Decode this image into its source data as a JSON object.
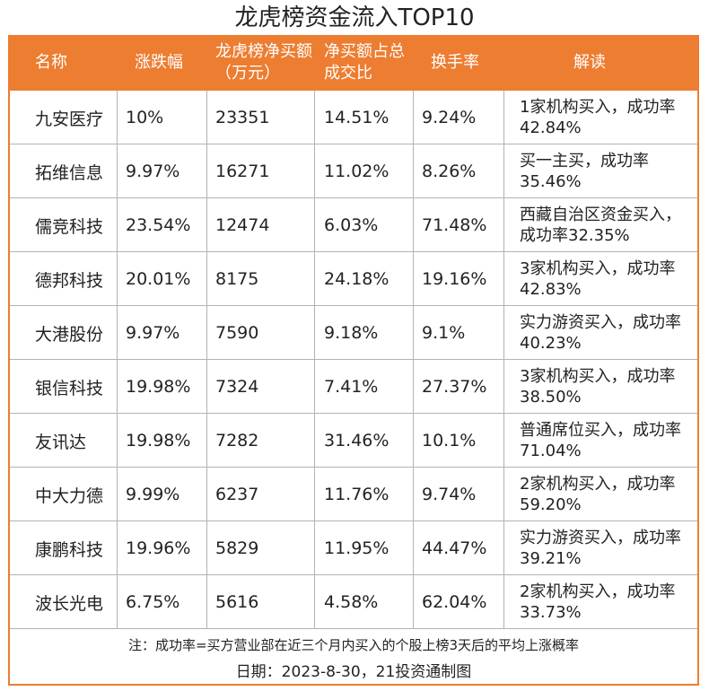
{
  "title": "龙虎榜资金流入TOP10",
  "accent_color": "#ED7D31",
  "columns": [
    "名称",
    "涨跌幅",
    "龙虎榜净买额（万元）",
    "净买额占总成交比",
    "换手率",
    "解读"
  ],
  "rows": [
    {
      "name": "九安医疗",
      "change": "10%",
      "net_buy": "23351",
      "ratio": "14.51%",
      "turnover": "9.24%",
      "note": "1家机构买入，成功率42.84%"
    },
    {
      "name": "拓维信息",
      "change": "9.97%",
      "net_buy": "16271",
      "ratio": "11.02%",
      "turnover": "8.26%",
      "note": "买一主买，成功率35.46%"
    },
    {
      "name": "儒竞科技",
      "change": "23.54%",
      "net_buy": "12474",
      "ratio": "6.03%",
      "turnover": "71.48%",
      "note": "西藏自治区资金买入，成功率32.35%"
    },
    {
      "name": "德邦科技",
      "change": "20.01%",
      "net_buy": "8175",
      "ratio": "24.18%",
      "turnover": "19.16%",
      "note": "3家机构买入，成功率42.83%"
    },
    {
      "name": "大港股份",
      "change": "9.97%",
      "net_buy": "7590",
      "ratio": "9.18%",
      "turnover": "9.1%",
      "note": "实力游资买入，成功率40.23%"
    },
    {
      "name": "银信科技",
      "change": "19.98%",
      "net_buy": "7324",
      "ratio": "7.41%",
      "turnover": "27.37%",
      "note": "3家机构买入，成功率38.50%"
    },
    {
      "name": "友讯达",
      "change": "19.98%",
      "net_buy": "7282",
      "ratio": "31.46%",
      "turnover": "10.1%",
      "note": "普通席位买入，成功率71.04%"
    },
    {
      "name": "中大力德",
      "change": "9.99%",
      "net_buy": "6237",
      "ratio": "11.76%",
      "turnover": "9.74%",
      "note": "2家机构买入，成功率59.20%"
    },
    {
      "name": "康鹏科技",
      "change": "19.96%",
      "net_buy": "5829",
      "ratio": "11.95%",
      "turnover": "44.47%",
      "note": "实力游资买入，成功率39.21%"
    },
    {
      "name": "波长光电",
      "change": "6.75%",
      "net_buy": "5616",
      "ratio": "4.58%",
      "turnover": "62.04%",
      "note": "2家机构买入，成功率33.73%"
    }
  ],
  "footnote": "注：成功率=买方营业部在近三个月内买入的个股上榜3天后的平均上涨概率",
  "date_line": "日期：2023-8-30，21投资通制图"
}
